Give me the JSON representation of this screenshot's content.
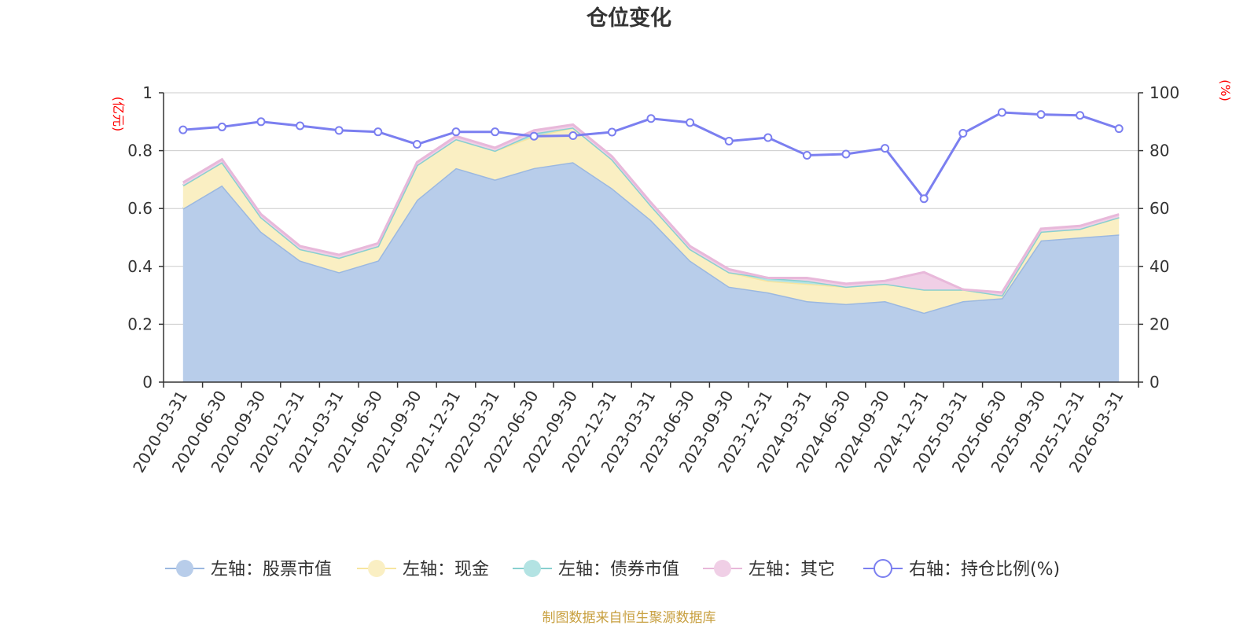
{
  "chart_data": {
    "type": "area",
    "title": "仓位变化",
    "source": "制图数据来自恒生聚源数据库",
    "left_axis": {
      "unit": "(亿元)",
      "min": 0,
      "max": 1,
      "ticks": [
        "0",
        "0.2",
        "0.4",
        "0.6",
        "0.8",
        "1"
      ]
    },
    "right_axis": {
      "unit": "(%)",
      "min": 0,
      "max": 100,
      "ticks": [
        "0",
        "20",
        "40",
        "60",
        "80",
        "100"
      ]
    },
    "categories": [
      "2020-03-31",
      "2020-06-30",
      "2020-09-30",
      "2020-12-31",
      "2021-03-31",
      "2021-06-30",
      "2021-09-30",
      "2021-12-31",
      "2022-03-31",
      "2022-06-30",
      "2022-09-30",
      "2022-12-31",
      "2023-03-31",
      "2023-06-30",
      "2023-09-30",
      "2023-12-31",
      "2024-03-31",
      "2024-06-30",
      "2024-09-30",
      "2024-12-31",
      "2025-03-31",
      "2025-06-30",
      "2025-09-30",
      "2025-12-31",
      "2026-03-31"
    ],
    "series": [
      {
        "name": "左轴：股票市值",
        "axis": "left",
        "color": "#9bb8e0",
        "fill": "#b8cdea",
        "values": [
          0.6,
          0.68,
          0.52,
          0.42,
          0.38,
          0.42,
          0.63,
          0.74,
          0.7,
          0.74,
          0.76,
          0.67,
          0.56,
          0.42,
          0.33,
          0.31,
          0.28,
          0.27,
          0.28,
          0.24,
          0.28,
          0.29,
          0.49,
          0.5,
          0.51
        ]
      },
      {
        "name": "左轴：现金",
        "axis": "left",
        "color": "#f7e5a0",
        "fill": "#faefc3",
        "values": [
          0.08,
          0.08,
          0.05,
          0.04,
          0.05,
          0.05,
          0.12,
          0.1,
          0.1,
          0.11,
          0.12,
          0.1,
          0.05,
          0.04,
          0.05,
          0.04,
          0.06,
          0.06,
          0.06,
          0.08,
          0.04,
          0.01,
          0.03,
          0.03,
          0.06
        ]
      },
      {
        "name": "左轴：债券市值",
        "axis": "left",
        "color": "#88d0d0",
        "fill": "#b3e3e3",
        "values": [
          0,
          0,
          0,
          0,
          0,
          0,
          0,
          0,
          0,
          0.01,
          0,
          0,
          0,
          0,
          0,
          0.01,
          0.01,
          0,
          0,
          0,
          0,
          0,
          0,
          0,
          0
        ]
      },
      {
        "name": "左轴：其它",
        "axis": "left",
        "color": "#e8b8da",
        "fill": "#f0cfe6",
        "values": [
          0.01,
          0.01,
          0.01,
          0.01,
          0.01,
          0.01,
          0.01,
          0.01,
          0.01,
          0.01,
          0.01,
          0.01,
          0.01,
          0.01,
          0.01,
          0.0,
          0.01,
          0.01,
          0.01,
          0.06,
          0.0,
          0.01,
          0.01,
          0.01,
          0.01
        ]
      },
      {
        "name": "右轴：持仓比例(%)",
        "axis": "right",
        "color": "#7b7ff0",
        "values": [
          87.2,
          88.2,
          90.0,
          88.6,
          87.0,
          86.5,
          82.2,
          86.5,
          86.5,
          85.0,
          85.2,
          86.4,
          91.1,
          89.7,
          83.3,
          84.5,
          78.4,
          78.8,
          80.8,
          63.4,
          86.0,
          93.2,
          92.5,
          92.2,
          87.6
        ]
      }
    ]
  }
}
